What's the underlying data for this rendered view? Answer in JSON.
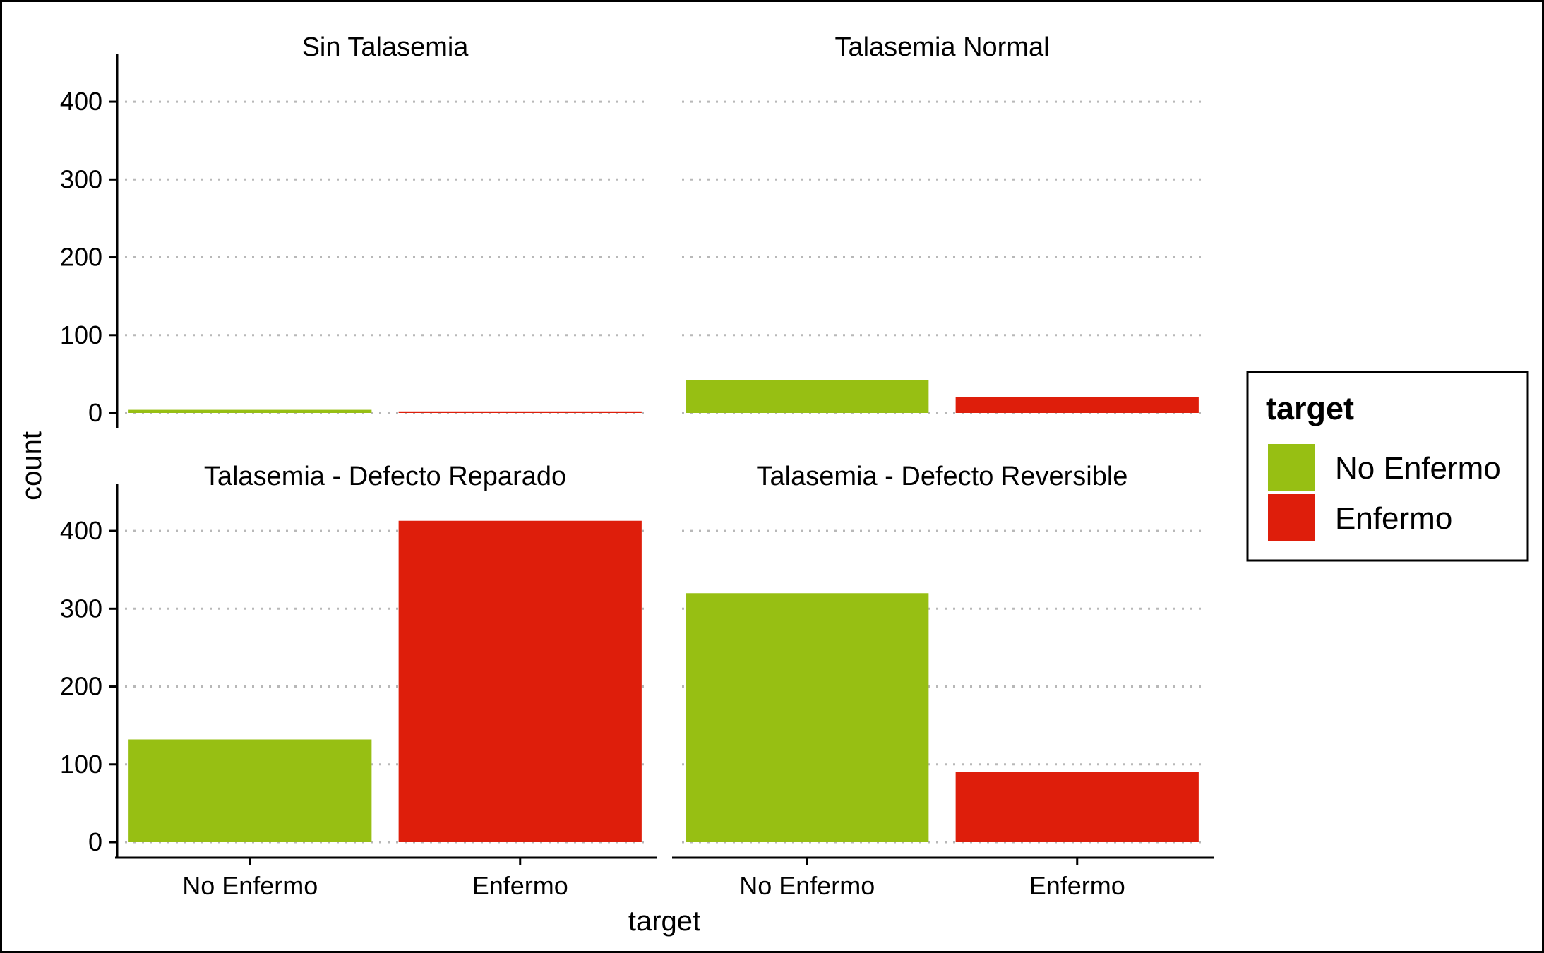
{
  "chart_data": {
    "type": "bar",
    "facet_layout": "2x2 grid",
    "xlabel": "target",
    "ylabel": "count",
    "ylim": [
      0,
      430
    ],
    "yticks": [
      0,
      100,
      200,
      300,
      400
    ],
    "categories": [
      "No Enfermo",
      "Enfermo"
    ],
    "grid": "horizontal dotted major gridlines",
    "legend": {
      "title": "target",
      "position": "right",
      "entries": [
        {
          "label": "No Enfermo",
          "color": "#97BF13"
        },
        {
          "label": "Enfermo",
          "color": "#DE1E0B"
        }
      ]
    },
    "colors": {
      "No Enfermo": "#97BF13",
      "Enfermo": "#DE1E0B"
    },
    "panels": [
      {
        "title": "Sin Talasemia",
        "values": [
          4,
          2
        ]
      },
      {
        "title": "Talasemia Normal",
        "values": [
          42,
          20
        ]
      },
      {
        "title": "Talasemia - Defecto Reparado",
        "values": [
          132,
          413
        ]
      },
      {
        "title": "Talasemia - Defecto Reversible",
        "values": [
          320,
          90
        ]
      }
    ]
  }
}
